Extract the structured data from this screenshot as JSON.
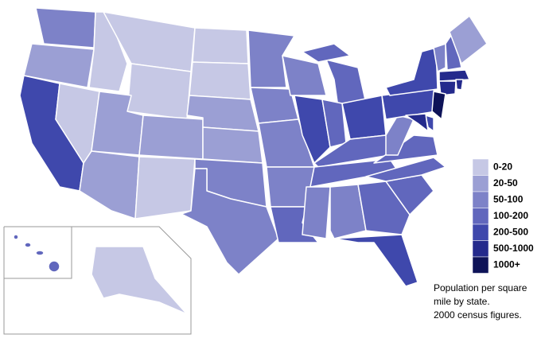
{
  "legend": {
    "items": [
      {
        "label": "0-20",
        "color": "#c6c8e5"
      },
      {
        "label": "20-50",
        "color": "#9b9fd4"
      },
      {
        "label": "50-100",
        "color": "#7d82c8"
      },
      {
        "label": "100-200",
        "color": "#6167bd"
      },
      {
        "label": "200-500",
        "color": "#3f48ac"
      },
      {
        "label": "500-1000",
        "color": "#242a8c"
      },
      {
        "label": "1000+",
        "color": "#0e1358"
      }
    ]
  },
  "caption": [
    "Population per square",
    "mile by state.",
    "2000 census figures."
  ]
}
